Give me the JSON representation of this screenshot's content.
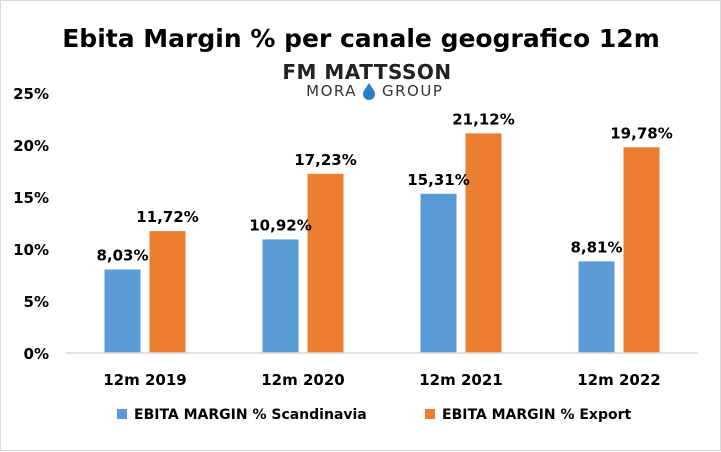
{
  "chart_data": {
    "type": "bar",
    "title": "Ebita Margin % per canale geografico 12m",
    "logo": {
      "line1": "FM MATTSSON",
      "line2_left": "MORA",
      "line2_right": "GROUP",
      "drop_color": "#2b7cc4"
    },
    "categories": [
      "12m 2019",
      "12m 2020",
      "12m 2021",
      "12m 2022"
    ],
    "series": [
      {
        "name": "EBITA MARGIN % Scandinavia",
        "color": "#5b9bd5",
        "values": [
          8.03,
          10.92,
          15.31,
          8.81
        ],
        "labels": [
          "8,03%",
          "10,92%",
          "15,31%",
          "8,81%"
        ]
      },
      {
        "name": "EBITA MARGIN % Export",
        "color": "#ed7d31",
        "values": [
          11.72,
          17.23,
          21.12,
          19.78
        ],
        "labels": [
          "11,72%",
          "17,23%",
          "21,12%",
          "19,78%"
        ]
      }
    ],
    "xlabel": "",
    "ylabel": "",
    "ylim": [
      0,
      25
    ],
    "yticks": [
      0,
      5,
      10,
      15,
      20,
      25
    ],
    "ytick_labels": [
      "0%",
      "5%",
      "10%",
      "15%",
      "20%",
      "25%"
    ],
    "grid": false,
    "legend_position": "bottom"
  }
}
